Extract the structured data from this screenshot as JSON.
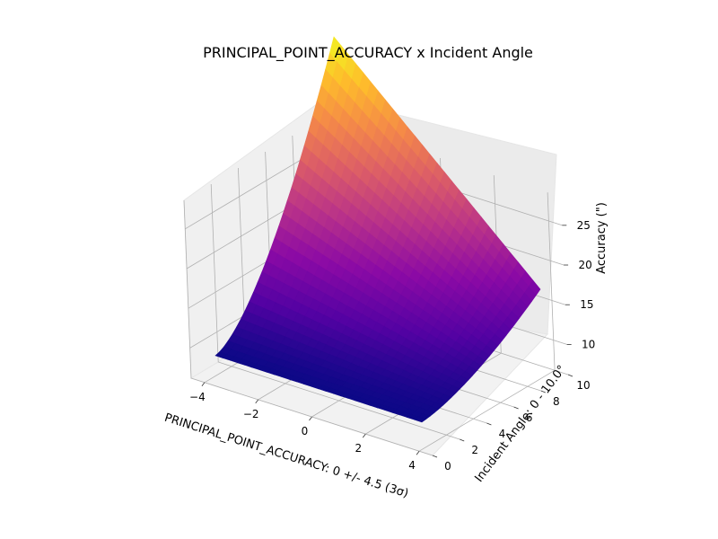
{
  "chart_data": {
    "type": "surface3d",
    "title": "PRINCIPAL_POINT_ACCURACY x Incident Angle",
    "xlabel": "PRINCIPAL_POINT_ACCURACY: 0 +/- 4.5 (3σ)",
    "ylabel": "Incident Angle: 0 - 10.0°",
    "zlabel": "Accuracy (\")",
    "xlim": [
      -4.5,
      4.5
    ],
    "ylim": [
      0,
      10
    ],
    "zlim": [
      6.2,
      28.6
    ],
    "x_ticks": [
      -4,
      -2,
      0,
      2,
      4
    ],
    "x_tick_labels": [
      "−4",
      "−2",
      "0",
      "2",
      "4"
    ],
    "y_ticks": [
      0,
      2,
      4,
      6,
      8,
      10
    ],
    "y_tick_labels": [
      "0",
      "2",
      "4",
      "6",
      "8",
      "10"
    ],
    "z_ticks": [
      10,
      15,
      20,
      25
    ],
    "z_tick_labels": [
      "10",
      "15",
      "20",
      "25"
    ],
    "colormap": "plasma",
    "grid": true,
    "corner_values": [
      {
        "x": -4.5,
        "y": 0,
        "z": 7.3
      },
      {
        "x": 4.5,
        "y": 0,
        "z": 7.3
      },
      {
        "x": -4.5,
        "y": 10,
        "z": 28.6
      },
      {
        "x": 4.5,
        "y": 10,
        "z": 12.5
      }
    ]
  }
}
